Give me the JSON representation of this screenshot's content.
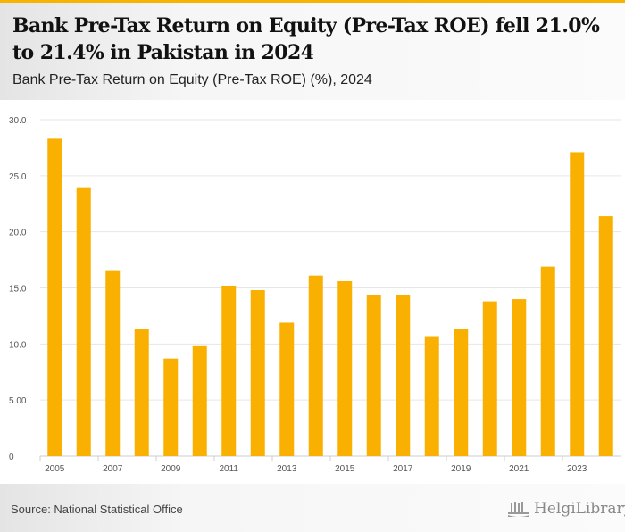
{
  "header": {
    "title": "Bank Pre-Tax Return on Equity (Pre-Tax ROE) fell 21.0% to 21.4% in Pakistan in 2024",
    "subtitle": "Bank Pre-Tax Return on Equity (Pre-Tax ROE) (%), 2024"
  },
  "footer": {
    "source": "Source: National Statistical Office",
    "logo": "HelgiLibrary."
  },
  "colors": {
    "bar": "#f9b000",
    "accent": "#f5b400"
  },
  "chart_data": {
    "type": "bar",
    "title": "Bank Pre-Tax Return on Equity (Pre-Tax ROE) (%), 2024",
    "xlabel": "",
    "ylabel": "",
    "ylim": [
      0,
      30
    ],
    "yticks": [
      {
        "v": 0,
        "label": "0"
      },
      {
        "v": 5,
        "label": "5.00"
      },
      {
        "v": 10,
        "label": "10.0"
      },
      {
        "v": 15,
        "label": "15.0"
      },
      {
        "v": 20,
        "label": "20.0"
      },
      {
        "v": 25,
        "label": "25.0"
      },
      {
        "v": 30,
        "label": "30.0"
      }
    ],
    "categories": [
      "2005",
      "2006",
      "2007",
      "2008",
      "2009",
      "2010",
      "2011",
      "2012",
      "2013",
      "2014",
      "2015",
      "2016",
      "2017",
      "2018",
      "2019",
      "2020",
      "2021",
      "2022",
      "2023",
      "2024"
    ],
    "xtick_labels": [
      "2005",
      "2007",
      "2009",
      "2011",
      "2013",
      "2015",
      "2017",
      "2019",
      "2021",
      "2023"
    ],
    "values": [
      28.3,
      23.9,
      16.5,
      11.3,
      8.7,
      9.8,
      15.2,
      14.8,
      11.9,
      16.1,
      15.6,
      14.4,
      14.4,
      10.7,
      11.3,
      13.8,
      14.0,
      16.9,
      27.1,
      21.4
    ],
    "grid": true,
    "legend": "none"
  }
}
